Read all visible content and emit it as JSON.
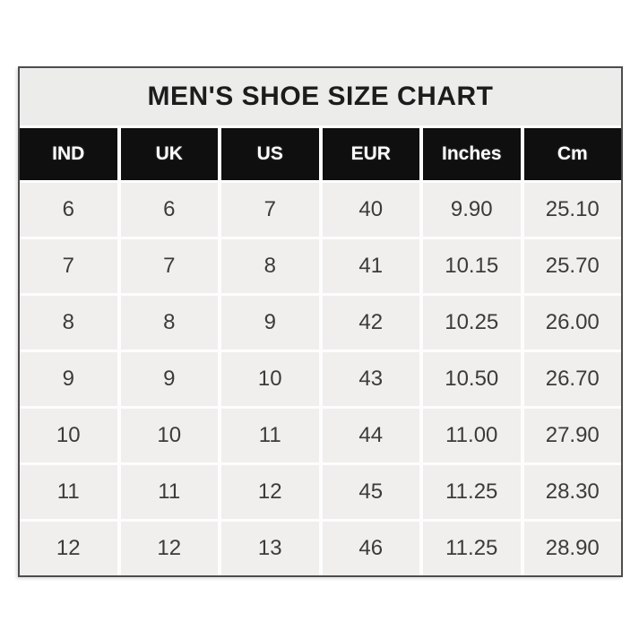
{
  "chart_data": {
    "type": "table",
    "title": "MEN'S SHOE SIZE CHART",
    "columns": [
      "IND",
      "UK",
      "US",
      "EUR",
      "Inches",
      "Cm"
    ],
    "rows": [
      [
        "6",
        "6",
        "7",
        "40",
        "9.90",
        "25.10"
      ],
      [
        "7",
        "7",
        "8",
        "41",
        "10.15",
        "25.70"
      ],
      [
        "8",
        "8",
        "9",
        "42",
        "10.25",
        "26.00"
      ],
      [
        "9",
        "9",
        "10",
        "43",
        "10.50",
        "26.70"
      ],
      [
        "10",
        "10",
        "11",
        "44",
        "11.00",
        "27.90"
      ],
      [
        "11",
        "11",
        "12",
        "45",
        "11.25",
        "28.30"
      ],
      [
        "12",
        "12",
        "13",
        "46",
        "11.25",
        "28.90"
      ]
    ],
    "layout": {
      "legend": "none",
      "grid": "white separators between cells"
    },
    "colors": {
      "page_background": "#ffffff",
      "title_band_background": "#ececea",
      "header_background": "#0f0f0f",
      "header_text": "#ffffff",
      "cell_background": "#f0efed",
      "cell_text": "#3b3b3b",
      "border": "#4d4d4d"
    }
  }
}
